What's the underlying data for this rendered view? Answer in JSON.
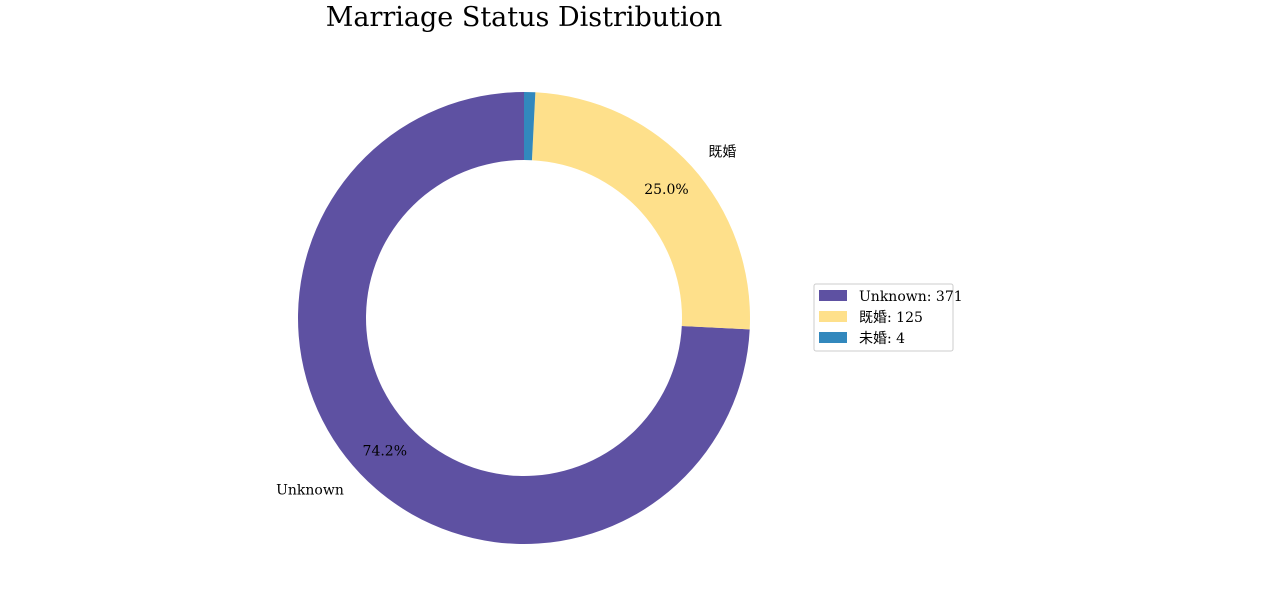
{
  "chart_data": {
    "type": "pie",
    "style": "donut",
    "title": "Marriage Status Distribution",
    "categories": [
      "Unknown",
      "既婚",
      "未婚"
    ],
    "values": [
      371,
      125,
      4
    ],
    "colors": [
      "#5e51a2",
      "#fee08b",
      "#3288bd"
    ],
    "slice_labels": [
      "Unknown",
      "既婚",
      ""
    ],
    "percent_labels": [
      "74.2%",
      "25.0%",
      ""
    ],
    "legend": {
      "placement": "right",
      "entries": [
        "Unknown: 371",
        "既婚: 125",
        "未婚: 4"
      ]
    }
  }
}
